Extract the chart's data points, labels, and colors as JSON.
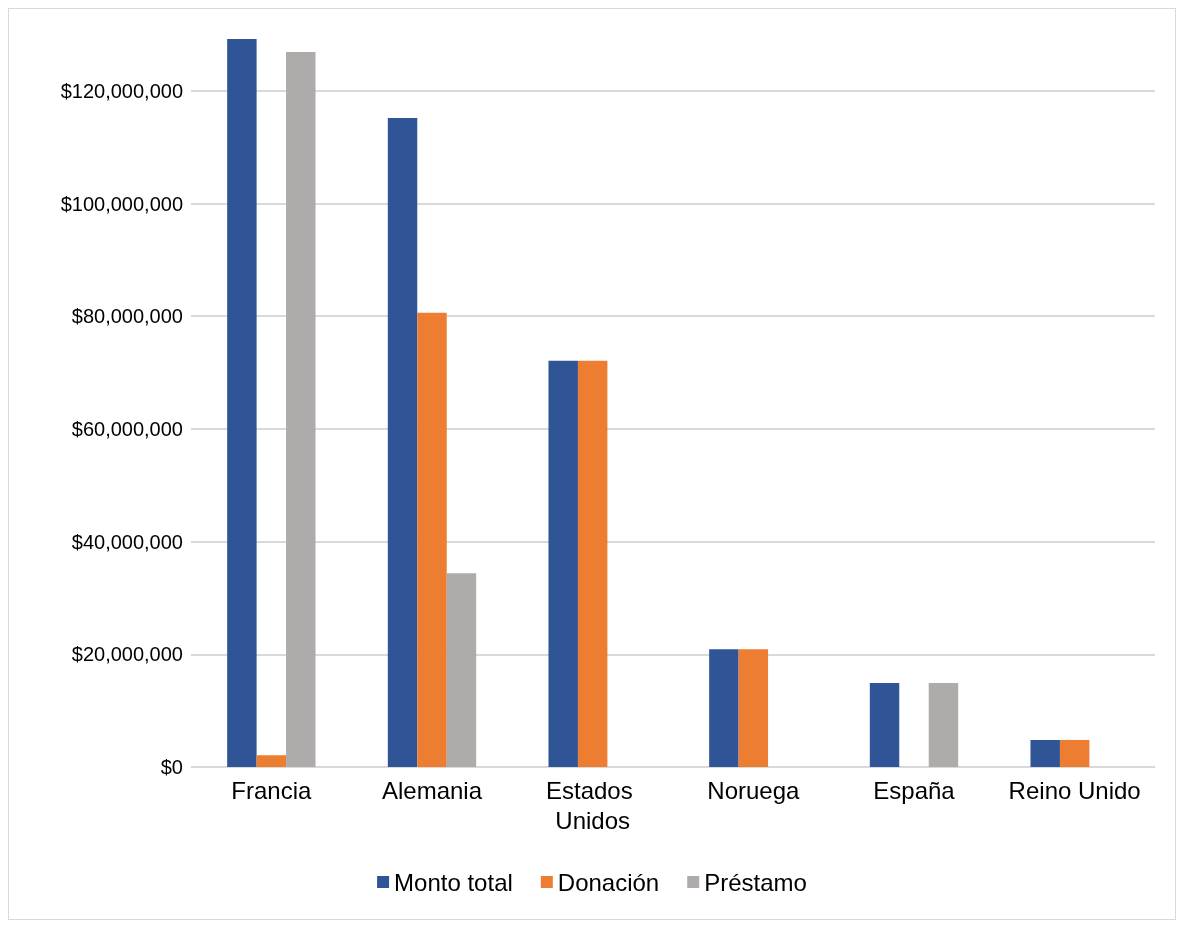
{
  "chart_data": {
    "type": "bar",
    "categories": [
      "Francia",
      "Alemania",
      "Estados Unidos",
      "Noruega",
      "España",
      "Reino Unido"
    ],
    "series": [
      {
        "name": "Monto total",
        "color": "#2f5597",
        "values": [
          129200000,
          115200000,
          72100000,
          20900000,
          14900000,
          4800000
        ]
      },
      {
        "name": "Donación",
        "color": "#ed7d31",
        "values": [
          2100000,
          80600000,
          72100000,
          20900000,
          null,
          4800000
        ]
      },
      {
        "name": "Préstamo",
        "color": "#afabab",
        "values": [
          126900000,
          34400000,
          null,
          null,
          14900000,
          null
        ]
      }
    ],
    "ylim": [
      0,
      129200000
    ],
    "yticks": [
      {
        "value": 0,
        "label": "$0"
      },
      {
        "value": 20000000,
        "label": "$20,000,000"
      },
      {
        "value": 40000000,
        "label": "$40,000,000"
      },
      {
        "value": 60000000,
        "label": "$60,000,000"
      },
      {
        "value": 80000000,
        "label": "$80,000,000"
      },
      {
        "value": 100000000,
        "label": "$100,000,000"
      },
      {
        "value": 120000000,
        "label": "$120,000,000"
      }
    ],
    "grid": "y",
    "legend": "bottom"
  }
}
